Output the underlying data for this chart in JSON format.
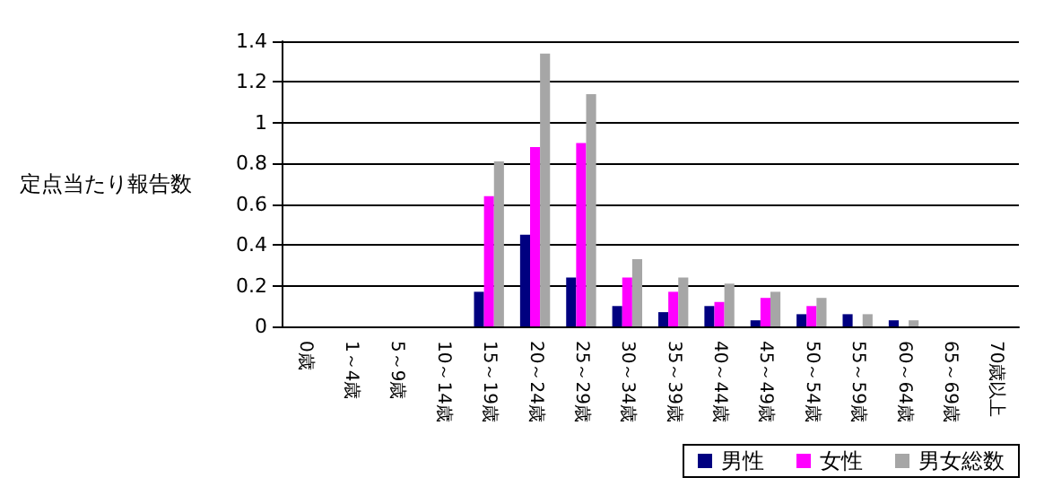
{
  "chart_data": {
    "type": "bar",
    "ylabel": "定点当たり報告数",
    "categories": [
      "0歳",
      "1～4歳",
      "5～9歳",
      "10～14歳",
      "15～19歳",
      "20～24歳",
      "25～29歳",
      "30～34歳",
      "35～39歳",
      "40～44歳",
      "45～49歳",
      "50～54歳",
      "55～59歳",
      "60～64歳",
      "65～69歳",
      "70歳以上"
    ],
    "series": [
      {
        "name": "男性",
        "color": "#000080",
        "values": [
          0,
          0,
          0,
          0,
          0.17,
          0.45,
          0.24,
          0.1,
          0.07,
          0.1,
          0.03,
          0.06,
          0.06,
          0.03,
          0,
          0
        ]
      },
      {
        "name": "女性",
        "color": "#ff00ff",
        "values": [
          0,
          0,
          0,
          0,
          0.64,
          0.88,
          0.9,
          0.24,
          0.17,
          0.12,
          0.14,
          0.1,
          0,
          0,
          0,
          0
        ]
      },
      {
        "name": "男女総数",
        "color": "#a6a6a6",
        "values": [
          0,
          0,
          0,
          0,
          0.81,
          1.34,
          1.14,
          0.33,
          0.24,
          0.21,
          0.17,
          0.14,
          0.06,
          0.03,
          0,
          0
        ]
      }
    ],
    "ylim": [
      0,
      1.4
    ],
    "yticks": [
      0,
      0.2,
      0.4,
      0.6,
      0.8,
      1,
      1.2,
      1.4
    ],
    "grid": "y",
    "legend": "bottom right"
  }
}
